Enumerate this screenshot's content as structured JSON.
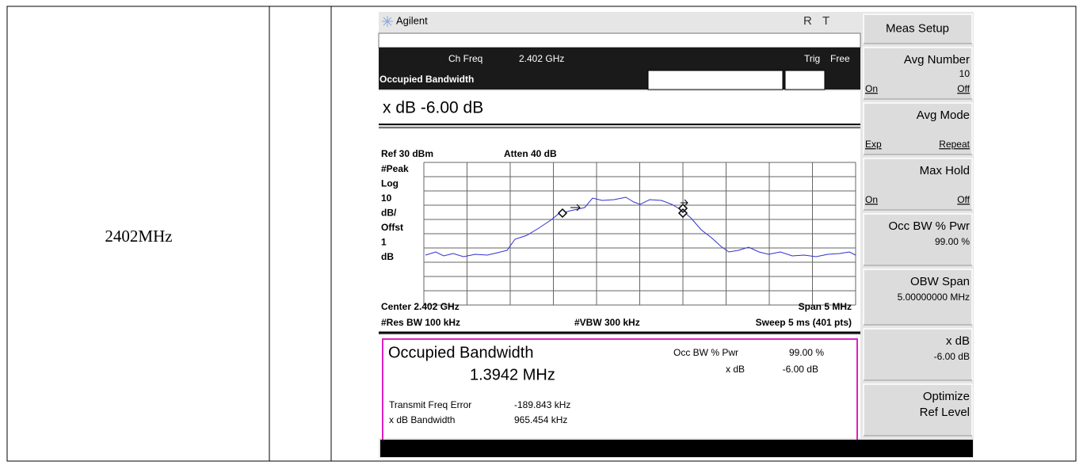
{
  "table": {
    "rows": [
      [
        "2402MHz"
      ]
    ]
  },
  "analyzer": {
    "brand": "Agilent",
    "status_r": "R",
    "status_t": "T",
    "ch_freq_label": "Ch Freq",
    "ch_freq": "2.402 GHz",
    "trig_label": "Trig",
    "trig": "Free",
    "measurement": "Occupied Bandwidth",
    "active_function": "x dB -6.00 dB",
    "ref": "Ref 30 dBm",
    "atten": "Atten 40 dB",
    "scale_labels": [
      "#Peak",
      "Log",
      "10",
      "dB/",
      "Offst",
      "1",
      "dB"
    ],
    "center": "Center 2.402 GHz",
    "span": "Span 5 MHz",
    "res_bw": "#Res BW 100 kHz",
    "vbw": "#VBW 300 kHz",
    "sweep": "Sweep 5 ms (401 pts)",
    "results": {
      "title": "Occupied Bandwidth",
      "value": "1.3942 MHz",
      "occ_bw_label": "Occ BW % Pwr",
      "occ_bw": "99.00 %",
      "xdb_label": "x dB",
      "xdb": "-6.00 dB",
      "tfe_label": "Transmit Freq Error",
      "tfe": "-189.843 kHz",
      "xdb_bw_label": "x dB Bandwidth",
      "xdb_bw": "965.454 kHz"
    }
  },
  "softkeys": [
    {
      "lines": [
        "Meas Setup"
      ]
    },
    {
      "lines": [
        "Avg Number"
      ],
      "value": "10",
      "left": "On",
      "right": "Off"
    },
    {
      "lines": [
        "Avg Mode"
      ],
      "left": "Exp",
      "right": "Repeat"
    },
    {
      "lines": [
        "Max Hold"
      ],
      "left": "On",
      "right": "Off"
    },
    {
      "lines": [
        "Occ BW % Pwr"
      ],
      "value": "99.00 %"
    },
    {
      "lines": [
        "OBW Span"
      ],
      "value": "5.00000000 MHz"
    },
    {
      "lines": [
        "x dB"
      ],
      "value": "-6.00 dB"
    },
    {
      "lines": [
        "Optimize",
        "Ref Level"
      ]
    }
  ]
}
